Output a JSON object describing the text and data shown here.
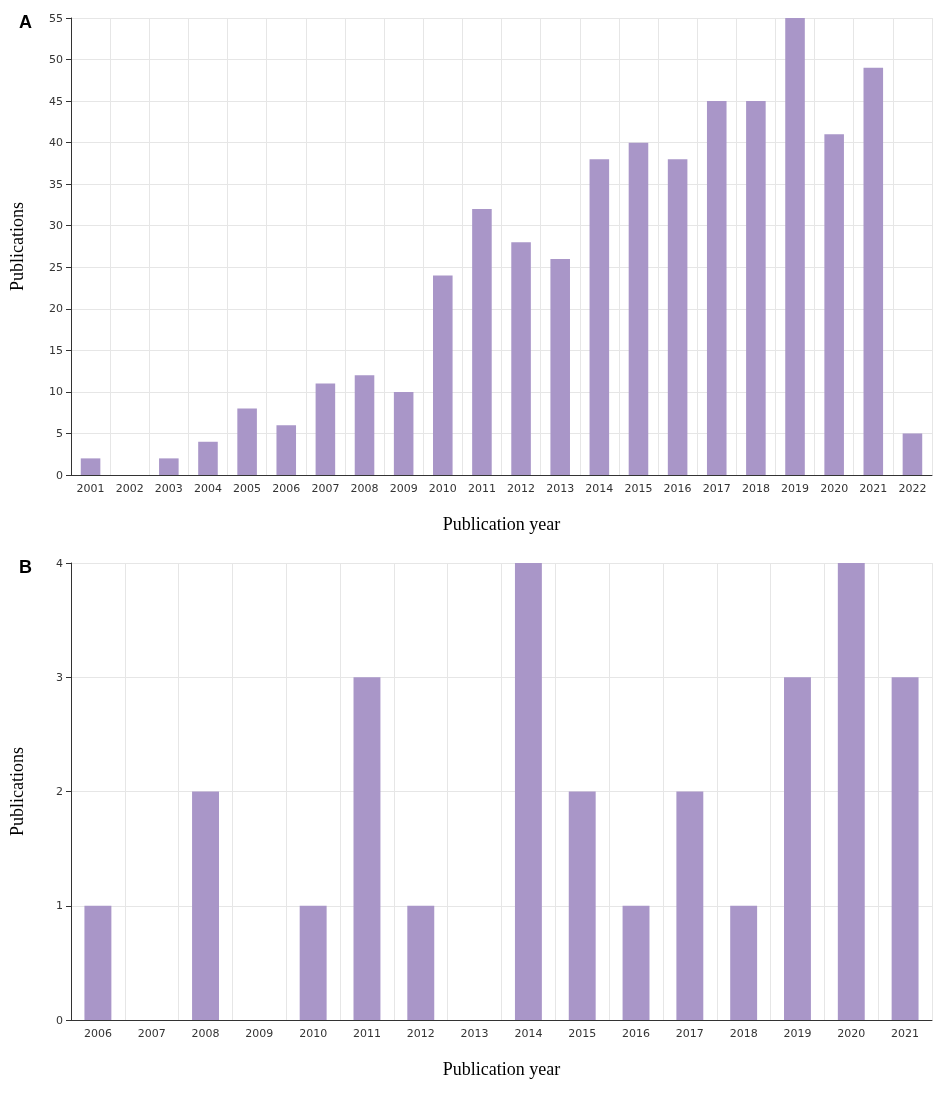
{
  "chart_data": [
    {
      "type": "bar",
      "title": "A",
      "xlabel": "Publication year",
      "ylabel": "Publications",
      "categories": [
        "2001",
        "2002",
        "2003",
        "2004",
        "2005",
        "2006",
        "2007",
        "2008",
        "2009",
        "2010",
        "2011",
        "2012",
        "2013",
        "2014",
        "2015",
        "2016",
        "2017",
        "2018",
        "2019",
        "2020",
        "2021",
        "2022"
      ],
      "values": [
        2,
        0,
        2,
        4,
        8,
        6,
        11,
        12,
        10,
        24,
        32,
        28,
        26,
        38,
        40,
        38,
        45,
        45,
        55,
        41,
        49,
        5
      ],
      "color": "#a996c8",
      "ylim": [
        0,
        55
      ],
      "yticks": [
        0,
        5,
        10,
        15,
        20,
        25,
        30,
        35,
        40,
        45,
        50,
        55
      ],
      "grid": true
    },
    {
      "type": "bar",
      "title": "B",
      "xlabel": "Publication year",
      "ylabel": "Publications",
      "categories": [
        "2006",
        "2007",
        "2008",
        "2009",
        "2010",
        "2011",
        "2012",
        "2013",
        "2014",
        "2015",
        "2016",
        "2017",
        "2018",
        "2019",
        "2020",
        "2021"
      ],
      "values": [
        1,
        0,
        2,
        0,
        1,
        3,
        1,
        0,
        4,
        2,
        1,
        2,
        1,
        3,
        4,
        3
      ],
      "color": "#a996c8",
      "ylim": [
        0,
        4
      ],
      "yticks": [
        0,
        1,
        2,
        3,
        4
      ],
      "grid": true
    }
  ]
}
